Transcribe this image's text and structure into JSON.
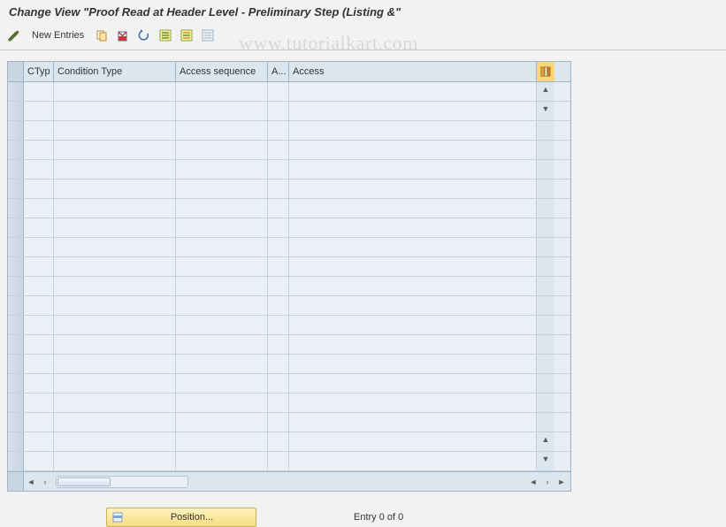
{
  "title": "Change View \"Proof Read at Header Level - Preliminary Step (Listing &\"",
  "toolbar": {
    "new_entries_label": "New Entries"
  },
  "watermark": "www.tutorialkart.com",
  "table": {
    "columns": {
      "ctyp": "CTyp",
      "condition_type": "Condition Type",
      "access_sequence": "Access sequence",
      "a_short": "A...",
      "access": "Access"
    },
    "row_count": 20,
    "rows": []
  },
  "footer": {
    "position_label": "Position...",
    "entry_text": "Entry 0 of 0"
  },
  "colors": {
    "header_bg": "#dce6ef",
    "row_bg": "#eaf0f6",
    "border": "#9db4c9",
    "position_btn_bg": "#f7dd80"
  }
}
